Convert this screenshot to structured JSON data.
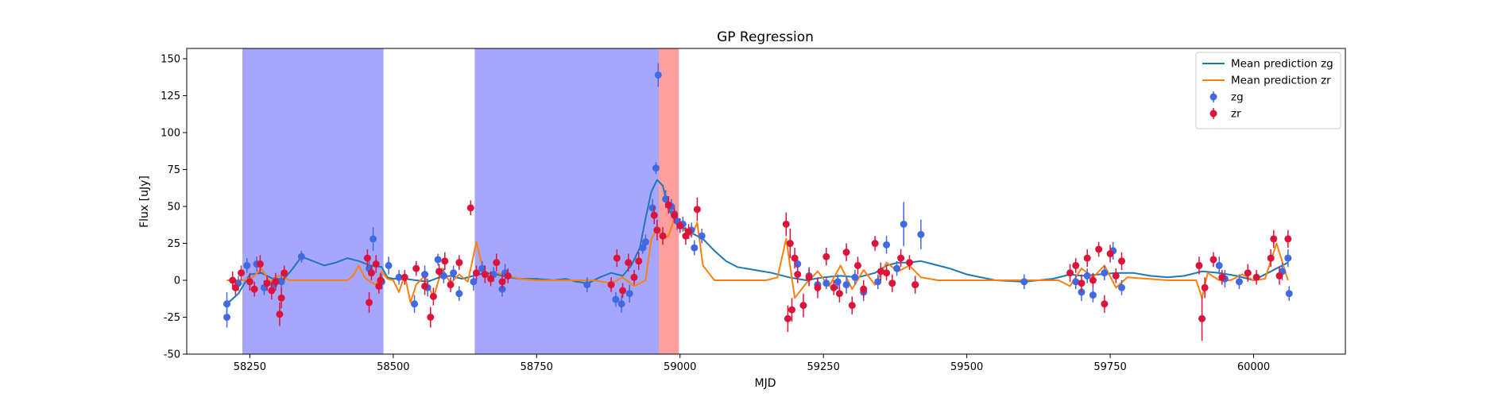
{
  "chart_data": {
    "type": "scatter",
    "title": "GP Regression",
    "xlabel": "MJD",
    "ylabel": "Flux [uJy]",
    "xlim": [
      58140,
      60160
    ],
    "ylim": [
      -50,
      157
    ],
    "xticks": [
      58250,
      58500,
      58750,
      59000,
      59250,
      59500,
      59750,
      60000
    ],
    "yticks": [
      -50,
      -25,
      0,
      25,
      50,
      75,
      100,
      125,
      150
    ],
    "grid": false,
    "legend_position": "top-right",
    "legend": [
      {
        "label": "Mean prediction zg",
        "kind": "line",
        "color": "#1f77b4"
      },
      {
        "label": "Mean prediction zr",
        "kind": "line",
        "color": "#ff7f0e"
      },
      {
        "label": "zg",
        "kind": "marker",
        "color": "#4169e1"
      },
      {
        "label": "zr",
        "kind": "marker",
        "color": "#dc143c"
      }
    ],
    "shaded_regions": [
      {
        "x0": 58237,
        "x1": 58483,
        "color": "#0000ff",
        "opacity": 0.35
      },
      {
        "x0": 58642,
        "x1": 58963,
        "color": "#0000ff",
        "opacity": 0.35
      },
      {
        "x0": 58963,
        "x1": 58998,
        "color": "#ff0000",
        "opacity": 0.38
      }
    ],
    "series": [
      {
        "name": "Mean prediction zg",
        "kind": "line",
        "color": "#1f77b4",
        "x": [
          58210,
          58230,
          58250,
          58270,
          58290,
          58310,
          58325,
          58340,
          58360,
          58380,
          58400,
          58420,
          58440,
          58460,
          58480,
          58490,
          58500,
          58520,
          58540,
          58560,
          58580,
          58600,
          58620,
          58640,
          58660,
          58680,
          58700,
          58720,
          58750,
          58780,
          58800,
          58820,
          58840,
          58860,
          58880,
          58900,
          58915,
          58930,
          58940,
          58950,
          58960,
          58970,
          58980,
          58990,
          59000,
          59020,
          59040,
          59060,
          59080,
          59100,
          59130,
          59160,
          59190,
          59220,
          59250,
          59280,
          59310,
          59340,
          59360,
          59380,
          59400,
          59420,
          59440,
          59470,
          59500,
          59550,
          59600,
          59650,
          59680,
          59700,
          59730,
          59760,
          59790,
          59820,
          59850,
          59880,
          59910,
          59940,
          59970,
          60000,
          60030,
          60060
        ],
        "y": [
          -16,
          -9,
          4,
          5,
          1,
          1,
          8,
          16,
          13,
          10,
          12,
          15,
          13,
          10,
          9,
          2,
          1,
          1,
          0,
          -1,
          2,
          3,
          1,
          3,
          5,
          4,
          2,
          1,
          1,
          0,
          1,
          -1,
          -2,
          2,
          5,
          3,
          10,
          22,
          42,
          60,
          68,
          64,
          48,
          42,
          37,
          32,
          28,
          20,
          13,
          9,
          7,
          5,
          2,
          0,
          2,
          3,
          2,
          5,
          10,
          12,
          12,
          13,
          11,
          8,
          4,
          0,
          -1,
          1,
          4,
          3,
          4,
          5,
          5,
          3,
          2,
          3,
          6,
          5,
          3,
          0,
          6,
          12
        ]
      },
      {
        "name": "Mean prediction zr",
        "kind": "line",
        "color": "#ff7f0e",
        "x": [
          58210,
          58230,
          58240,
          58255,
          58270,
          58285,
          58300,
          58320,
          58350,
          58380,
          58400,
          58420,
          58430,
          58440,
          58450,
          58460,
          58470,
          58480,
          58490,
          58500,
          58510,
          58520,
          58530,
          58540,
          58555,
          58570,
          58585,
          58600,
          58615,
          58630,
          58645,
          58660,
          58680,
          58700,
          58720,
          58750,
          58800,
          58850,
          58880,
          58900,
          58920,
          58940,
          58950,
          58960,
          58970,
          58980,
          58990,
          59000,
          59010,
          59020,
          59030,
          59040,
          59060,
          59100,
          59150,
          59170,
          59185,
          59200,
          59220,
          59240,
          59260,
          59280,
          59300,
          59320,
          59340,
          59360,
          59380,
          59400,
          59420,
          59450,
          59500,
          59600,
          59660,
          59680,
          59700,
          59720,
          59740,
          59760,
          59780,
          59850,
          59900,
          59910,
          59920,
          59940,
          59960,
          59980,
          60000,
          60020,
          60040,
          60060
        ],
        "y": [
          0,
          0,
          0,
          2,
          8,
          -1,
          3,
          0,
          0,
          0,
          0,
          0,
          3,
          10,
          2,
          -1,
          -3,
          6,
          1,
          0,
          -8,
          4,
          -15,
          -3,
          3,
          -12,
          8,
          -2,
          4,
          -1,
          26,
          2,
          5,
          3,
          1,
          0,
          0,
          0,
          -2,
          2,
          -4,
          0,
          28,
          35,
          28,
          30,
          42,
          36,
          33,
          30,
          39,
          10,
          0,
          0,
          0,
          2,
          28,
          -12,
          -2,
          6,
          -4,
          10,
          -6,
          7,
          -3,
          12,
          6,
          10,
          2,
          0,
          0,
          0,
          0,
          -4,
          8,
          2,
          10,
          -5,
          2,
          0,
          0,
          -12,
          5,
          0,
          0,
          4,
          0,
          1,
          25,
          0
        ]
      },
      {
        "name": "zg",
        "kind": "points",
        "color": "#4169e1",
        "points": [
          [
            58210,
            -16,
            8
          ],
          [
            58210,
            -25,
            7
          ],
          [
            58230,
            -2,
            5
          ],
          [
            58245,
            10,
            5
          ],
          [
            58262,
            11,
            5
          ],
          [
            58275,
            -5,
            5
          ],
          [
            58292,
            -3,
            5
          ],
          [
            58305,
            -1,
            6
          ],
          [
            58340,
            16,
            4
          ],
          [
            58458,
            8,
            5
          ],
          [
            58465,
            28,
            8
          ],
          [
            58480,
            -1,
            5
          ],
          [
            58492,
            10,
            6
          ],
          [
            58510,
            2,
            5
          ],
          [
            58537,
            -16,
            6
          ],
          [
            58555,
            4,
            6
          ],
          [
            58560,
            -5,
            6
          ],
          [
            58578,
            14,
            4
          ],
          [
            58588,
            3,
            5
          ],
          [
            58605,
            5,
            5
          ],
          [
            58615,
            -9,
            5
          ],
          [
            58640,
            -1,
            6
          ],
          [
            58655,
            8,
            5
          ],
          [
            58675,
            4,
            5
          ],
          [
            58690,
            -6,
            5
          ],
          [
            58695,
            5,
            6
          ],
          [
            58838,
            -3,
            5
          ],
          [
            58888,
            -13,
            5
          ],
          [
            58898,
            -16,
            6
          ],
          [
            58912,
            -9,
            6
          ],
          [
            58935,
            22,
            4
          ],
          [
            58940,
            26,
            5
          ],
          [
            58952,
            49,
            6
          ],
          [
            58958,
            76,
            4
          ],
          [
            58962,
            139,
            8
          ],
          [
            58975,
            55,
            6
          ],
          [
            58985,
            50,
            5
          ],
          [
            58990,
            45,
            5
          ],
          [
            58995,
            40,
            6
          ],
          [
            59005,
            38,
            5
          ],
          [
            59020,
            34,
            5
          ],
          [
            59025,
            22,
            5
          ],
          [
            59038,
            30,
            5
          ],
          [
            59205,
            11,
            5
          ],
          [
            59225,
            3,
            6
          ],
          [
            59240,
            -3,
            5
          ],
          [
            59255,
            -2,
            4
          ],
          [
            59275,
            -1,
            5
          ],
          [
            59290,
            -3,
            6
          ],
          [
            59305,
            2,
            5
          ],
          [
            59320,
            -8,
            6
          ],
          [
            59345,
            -1,
            5
          ],
          [
            59360,
            24,
            6
          ],
          [
            59378,
            8,
            5
          ],
          [
            59390,
            38,
            15
          ],
          [
            59410,
            -3,
            4
          ],
          [
            59420,
            31,
            10
          ],
          [
            59600,
            -1,
            5
          ],
          [
            59690,
            -1,
            5
          ],
          [
            59700,
            -8,
            6
          ],
          [
            59710,
            3,
            5
          ],
          [
            59720,
            -10,
            5
          ],
          [
            59740,
            5,
            5
          ],
          [
            59755,
            20,
            6
          ],
          [
            59770,
            -5,
            5
          ],
          [
            59940,
            10,
            6
          ],
          [
            59950,
            1,
            6
          ],
          [
            59975,
            -1,
            5
          ],
          [
            60050,
            6,
            6
          ],
          [
            60060,
            15,
            6
          ],
          [
            60062,
            -9,
            5
          ]
        ]
      },
      {
        "name": "zr",
        "kind": "points",
        "color": "#dc143c",
        "points": [
          [
            58220,
            0,
            6
          ],
          [
            58225,
            -5,
            5
          ],
          [
            58235,
            5,
            5
          ],
          [
            58250,
            -1,
            6
          ],
          [
            58258,
            -6,
            5
          ],
          [
            58268,
            11,
            6
          ],
          [
            58280,
            -2,
            5
          ],
          [
            58288,
            -7,
            6
          ],
          [
            58295,
            -1,
            6
          ],
          [
            58302,
            -23,
            8
          ],
          [
            58305,
            -12,
            7
          ],
          [
            58310,
            5,
            5
          ],
          [
            58455,
            15,
            6
          ],
          [
            58458,
            -15,
            7
          ],
          [
            58462,
            5,
            5
          ],
          [
            58470,
            11,
            6
          ],
          [
            58475,
            -4,
            5
          ],
          [
            58478,
            0,
            5
          ],
          [
            58520,
            2,
            5
          ],
          [
            58540,
            8,
            5
          ],
          [
            58555,
            -4,
            6
          ],
          [
            58565,
            -25,
            7
          ],
          [
            58570,
            -11,
            6
          ],
          [
            58580,
            6,
            5
          ],
          [
            58590,
            13,
            6
          ],
          [
            58600,
            -3,
            5
          ],
          [
            58615,
            12,
            5
          ],
          [
            58635,
            49,
            5
          ],
          [
            58645,
            5,
            5
          ],
          [
            58660,
            4,
            6
          ],
          [
            58670,
            1,
            5
          ],
          [
            58680,
            12,
            6
          ],
          [
            58690,
            -1,
            5
          ],
          [
            58700,
            3,
            5
          ],
          [
            58880,
            -3,
            5
          ],
          [
            58890,
            15,
            6
          ],
          [
            58900,
            -7,
            5
          ],
          [
            58910,
            12,
            6
          ],
          [
            58920,
            2,
            5
          ],
          [
            58928,
            13,
            6
          ],
          [
            58955,
            44,
            6
          ],
          [
            58960,
            34,
            7
          ],
          [
            58970,
            30,
            6
          ],
          [
            58980,
            51,
            6
          ],
          [
            58990,
            44,
            5
          ],
          [
            59000,
            37,
            5
          ],
          [
            59010,
            30,
            6
          ],
          [
            59015,
            33,
            5
          ],
          [
            59030,
            48,
            8
          ],
          [
            59185,
            38,
            8
          ],
          [
            59188,
            -26,
            9
          ],
          [
            59192,
            25,
            10
          ],
          [
            59195,
            -20,
            8
          ],
          [
            59200,
            15,
            7
          ],
          [
            59205,
            4,
            6
          ],
          [
            59215,
            -17,
            8
          ],
          [
            59225,
            2,
            6
          ],
          [
            59240,
            -5,
            7
          ],
          [
            59255,
            16,
            6
          ],
          [
            59268,
            -5,
            5
          ],
          [
            59278,
            -9,
            6
          ],
          [
            59290,
            19,
            6
          ],
          [
            59300,
            -17,
            6
          ],
          [
            59310,
            10,
            6
          ],
          [
            59320,
            -6,
            6
          ],
          [
            59340,
            25,
            5
          ],
          [
            59350,
            6,
            6
          ],
          [
            59360,
            5,
            5
          ],
          [
            59370,
            -2,
            6
          ],
          [
            59385,
            15,
            6
          ],
          [
            59400,
            12,
            5
          ],
          [
            59410,
            -3,
            6
          ],
          [
            59680,
            5,
            6
          ],
          [
            59690,
            10,
            5
          ],
          [
            59700,
            -2,
            6
          ],
          [
            59710,
            15,
            6
          ],
          [
            59720,
            0,
            5
          ],
          [
            59730,
            21,
            5
          ],
          [
            59740,
            -16,
            6
          ],
          [
            59750,
            18,
            6
          ],
          [
            59760,
            3,
            5
          ],
          [
            59770,
            13,
            6
          ],
          [
            59905,
            10,
            6
          ],
          [
            59910,
            -26,
            15
          ],
          [
            59915,
            -5,
            7
          ],
          [
            59930,
            14,
            5
          ],
          [
            59945,
            2,
            5
          ],
          [
            59990,
            5,
            6
          ],
          [
            60005,
            2,
            5
          ],
          [
            60030,
            15,
            6
          ],
          [
            60035,
            28,
            6
          ],
          [
            60045,
            3,
            6
          ],
          [
            60060,
            28,
            6
          ]
        ]
      }
    ]
  }
}
